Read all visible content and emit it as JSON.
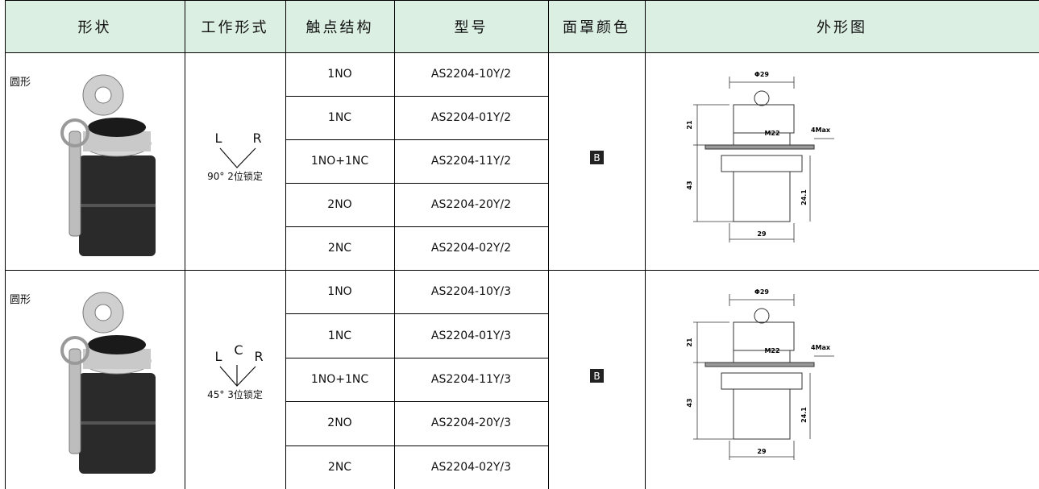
{
  "header": [
    "形状",
    "工作形式",
    "触点结构",
    "型号",
    "面罩颜色",
    "外形图"
  ],
  "groups": [
    {
      "shape": "圆形",
      "positions": [
        "L",
        "R"
      ],
      "mode": "90° 2位锁定",
      "rows": [
        [
          "1NO",
          "AS2204-10Y/2"
        ],
        [
          "1NC",
          "AS2204-01Y/2"
        ],
        [
          "1NO+1NC",
          "AS2204-11Y/2"
        ],
        [
          "2NO",
          "AS2204-20Y/2"
        ],
        [
          "2NC",
          "AS2204-02Y/2"
        ]
      ],
      "color": "B",
      "drawing": [
        "Φ29",
        "21",
        "M22",
        "4Max",
        "43",
        "24.1",
        "29"
      ]
    },
    {
      "shape": "圆形",
      "positions": [
        "L",
        "C",
        "R"
      ],
      "mode": "45° 3位锁定",
      "rows": [
        [
          "1NO",
          "AS2204-10Y/3"
        ],
        [
          "1NC",
          "AS2204-01Y/3"
        ],
        [
          "1NO+1NC",
          "AS2204-11Y/3"
        ],
        [
          "2NO",
          "AS2204-20Y/3"
        ],
        [
          "2NC",
          "AS2204-02Y/3"
        ]
      ],
      "color": "B",
      "drawing": [
        "Φ29",
        "21",
        "M22",
        "4Max",
        "43",
        "24.1",
        "29"
      ]
    }
  ]
}
